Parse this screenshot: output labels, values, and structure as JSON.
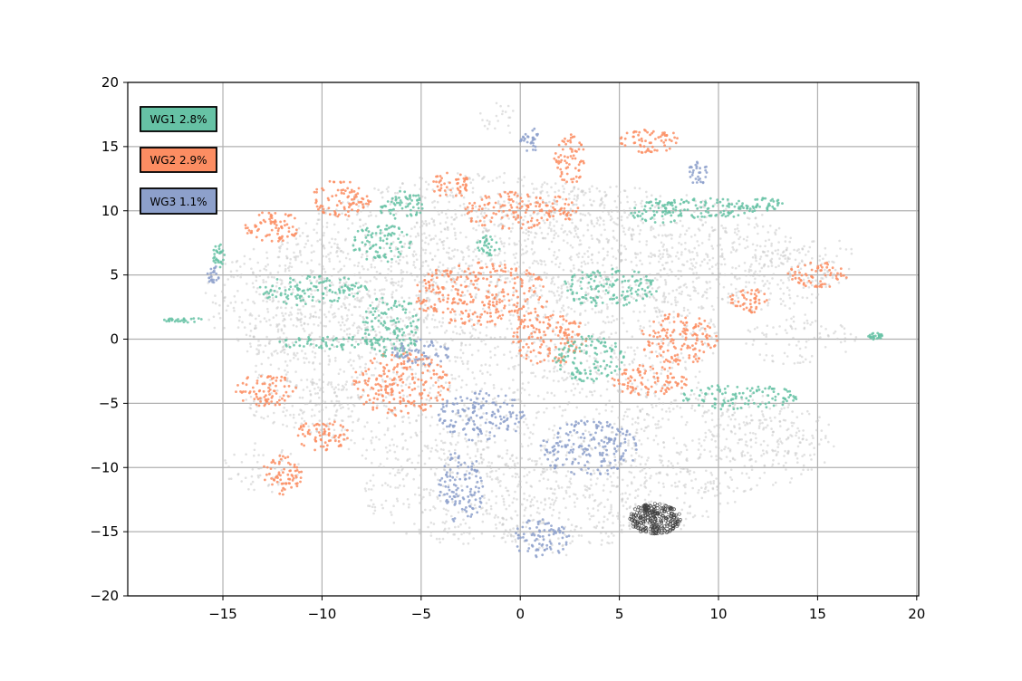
{
  "chart_data": {
    "type": "scatter",
    "title": "",
    "xlabel": "",
    "ylabel": "",
    "xlim": [
      -19.8,
      20.1
    ],
    "ylim": [
      -20,
      20
    ],
    "xticks": [
      -15,
      -10,
      -5,
      0,
      5,
      10,
      15,
      20
    ],
    "yticks": [
      -20,
      -15,
      -10,
      -5,
      0,
      5,
      10,
      15,
      20
    ],
    "xtick_labels": [
      "−15",
      "−10",
      "−5",
      "0",
      "5",
      "10",
      "15",
      "20"
    ],
    "ytick_labels": [
      "−20",
      "−15",
      "−10",
      "−5",
      "0",
      "5",
      "10",
      "15",
      "20"
    ],
    "grid": true,
    "legend_position": "top-left",
    "background_color": "#c8c8c8",
    "legend": [
      {
        "label": "WG1 2.8%",
        "color": "#66c2a5"
      },
      {
        "label": "WG2 2.9%",
        "color": "#fc8d62"
      },
      {
        "label": "WG3 1.1%",
        "color": "#8da0cb"
      }
    ],
    "highlight": {
      "color": "#404040"
    },
    "clusters": {
      "background": [
        {
          "x": -2,
          "y": 1,
          "rx": 12,
          "ry": 12
        },
        {
          "x": 4,
          "y": 7,
          "rx": 10,
          "ry": 5
        },
        {
          "x": -10,
          "y": 3,
          "rx": 6,
          "ry": 5
        },
        {
          "x": 10,
          "y": -8,
          "rx": 6,
          "ry": 4
        },
        {
          "x": 12,
          "y": 5,
          "rx": 4,
          "ry": 3
        },
        {
          "x": -3,
          "y": -12,
          "rx": 5,
          "ry": 4
        },
        {
          "x": 2,
          "y": -13,
          "rx": 4,
          "ry": 4
        },
        {
          "x": 7,
          "y": -12,
          "rx": 4,
          "ry": 3
        },
        {
          "x": 12,
          "y": -8,
          "rx": 3,
          "ry": 2
        },
        {
          "x": -11,
          "y": -5,
          "rx": 3,
          "ry": 2
        },
        {
          "x": -13,
          "y": -10,
          "rx": 2,
          "ry": 2
        },
        {
          "x": 14,
          "y": 0,
          "rx": 3,
          "ry": 2
        },
        {
          "x": -1.2,
          "y": 17,
          "rx": 1,
          "ry": 1.5
        },
        {
          "x": 15,
          "y": 6,
          "rx": 2,
          "ry": 2
        }
      ],
      "wg1": [
        {
          "x": -10.5,
          "y": 3.8,
          "rx": 2.8,
          "ry": 1.2
        },
        {
          "x": -9.5,
          "y": -0.3,
          "rx": 2.8,
          "ry": 0.5
        },
        {
          "x": -6,
          "y": 10.5,
          "rx": 1.2,
          "ry": 1.2
        },
        {
          "x": -1.6,
          "y": 7.3,
          "rx": 0.6,
          "ry": 0.8
        },
        {
          "x": 9.5,
          "y": 10.2,
          "rx": 2.5,
          "ry": 0.8
        },
        {
          "x": 12,
          "y": 10.5,
          "rx": 1.5,
          "ry": 0.5
        },
        {
          "x": -6.5,
          "y": 1,
          "rx": 1.5,
          "ry": 2.5
        },
        {
          "x": 3.5,
          "y": -1.5,
          "rx": 1.8,
          "ry": 1.8
        },
        {
          "x": 11,
          "y": -4.5,
          "rx": 3,
          "ry": 1
        },
        {
          "x": 4.5,
          "y": 4,
          "rx": 2.5,
          "ry": 1.5
        },
        {
          "x": 7,
          "y": 10,
          "rx": 1.5,
          "ry": 1
        },
        {
          "x": -7,
          "y": 7.5,
          "rx": 1.5,
          "ry": 1.5
        },
        {
          "x": -17,
          "y": 1.5,
          "rx": 1,
          "ry": 0.2
        },
        {
          "x": 17.9,
          "y": 0.2,
          "rx": 0.4,
          "ry": 0.3
        },
        {
          "x": -15.2,
          "y": 6.5,
          "rx": 0.3,
          "ry": 1
        }
      ],
      "wg2": [
        {
          "x": -12.5,
          "y": 8.8,
          "rx": 1.5,
          "ry": 1.2
        },
        {
          "x": -12.8,
          "y": -4,
          "rx": 1.6,
          "ry": 1.3
        },
        {
          "x": -12,
          "y": -10.5,
          "rx": 1,
          "ry": 1.6
        },
        {
          "x": -10,
          "y": -7.5,
          "rx": 1.4,
          "ry": 1.2
        },
        {
          "x": -2,
          "y": 3.5,
          "rx": 3.5,
          "ry": 2.5
        },
        {
          "x": -9,
          "y": 11,
          "rx": 1.5,
          "ry": 1.5
        },
        {
          "x": 11.5,
          "y": 3,
          "rx": 1,
          "ry": 1
        },
        {
          "x": 6.5,
          "y": -3.2,
          "rx": 2,
          "ry": 1.2
        },
        {
          "x": 2.5,
          "y": 14,
          "rx": 0.8,
          "ry": 2
        },
        {
          "x": 6.5,
          "y": 15.5,
          "rx": 1.5,
          "ry": 1
        },
        {
          "x": 0,
          "y": 10,
          "rx": 3,
          "ry": 1.5
        },
        {
          "x": -6,
          "y": -3.5,
          "rx": 2.5,
          "ry": 2.5
        },
        {
          "x": -3.5,
          "y": 12,
          "rx": 1,
          "ry": 1
        },
        {
          "x": 15,
          "y": 5,
          "rx": 1.5,
          "ry": 1
        },
        {
          "x": 8,
          "y": 0,
          "rx": 2,
          "ry": 2
        },
        {
          "x": 1.5,
          "y": 0,
          "rx": 2,
          "ry": 2
        }
      ],
      "wg3": [
        {
          "x": -3,
          "y": -11.5,
          "rx": 1.2,
          "ry": 2.8
        },
        {
          "x": 3.5,
          "y": -8.5,
          "rx": 2.5,
          "ry": 2.2
        },
        {
          "x": -2,
          "y": -6,
          "rx": 2.2,
          "ry": 2
        },
        {
          "x": 1,
          "y": -15.5,
          "rx": 1.5,
          "ry": 1.5
        },
        {
          "x": 0.5,
          "y": 15.5,
          "rx": 0.5,
          "ry": 1
        },
        {
          "x": 9,
          "y": 13,
          "rx": 0.5,
          "ry": 1
        },
        {
          "x": -15.5,
          "y": 5,
          "rx": 0.3,
          "ry": 0.8
        },
        {
          "x": -5,
          "y": -1,
          "rx": 1.5,
          "ry": 1
        }
      ],
      "highlight_dense": {
        "x": 6.8,
        "y": -14,
        "rx": 1.3,
        "ry": 1.2
      }
    }
  }
}
